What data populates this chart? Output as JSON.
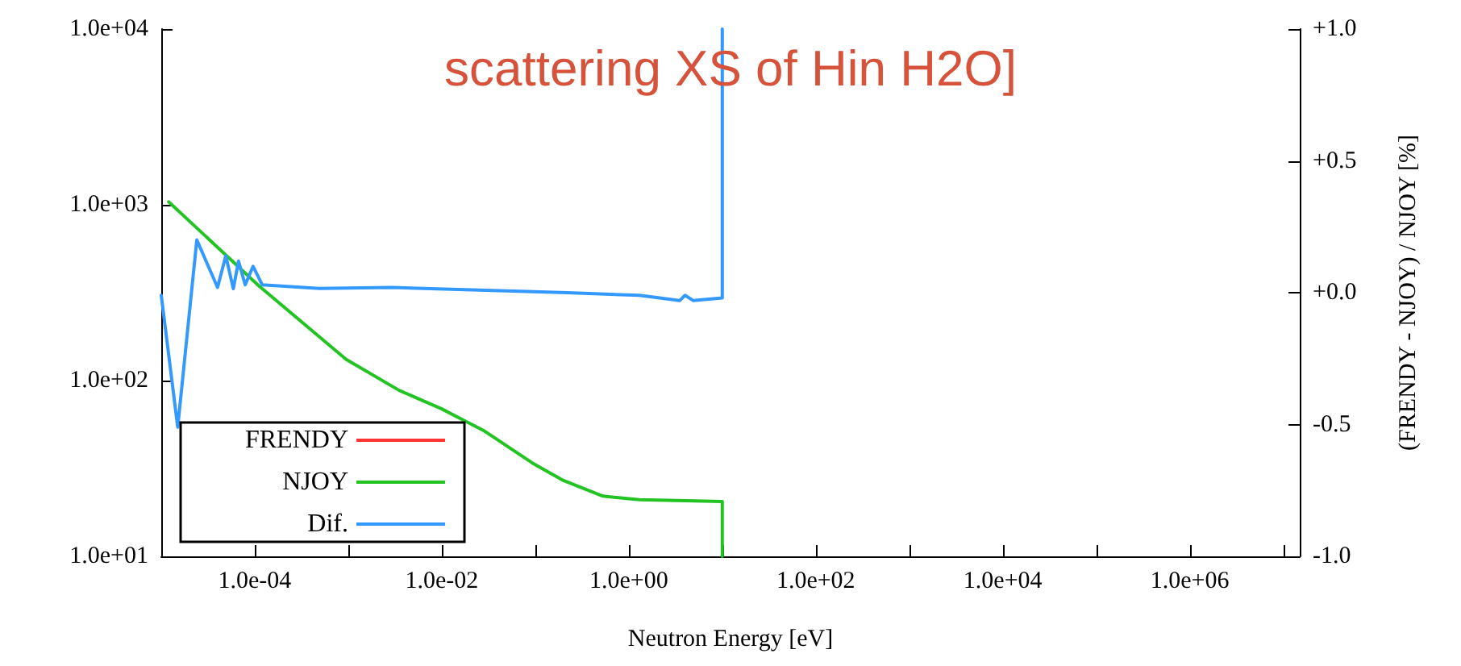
{
  "chart_data": {
    "type": "line",
    "title": "scattering XS of Hin H2O]",
    "xlabel": "Neutron Energy [eV]",
    "y2label": "(FRENDY - NJOY) / NJOY [%]",
    "log": "xy",
    "grid": false,
    "legend": "bottom left",
    "marker": "none",
    "line_style": "solid",
    "xlim": [
      1e-05,
      15000000
    ],
    "xticks": [
      {
        "value": 0.0001,
        "label": "1.0e-04"
      },
      {
        "value": 0.001,
        "label": null
      },
      {
        "value": 0.01,
        "label": "1.0e-02"
      },
      {
        "value": 0.1,
        "label": null
      },
      {
        "value": 1,
        "label": "1.0e+00"
      },
      {
        "value": 10,
        "label": null
      },
      {
        "value": 100,
        "label": "1.0e+02"
      },
      {
        "value": 1000,
        "label": null
      },
      {
        "value": 10000,
        "label": "1.0e+04"
      },
      {
        "value": 100000,
        "label": null
      },
      {
        "value": 1000000,
        "label": "1.0e+06"
      },
      {
        "value": 10000000,
        "label": null
      }
    ],
    "ylim": [
      10,
      10000
    ],
    "yticks": [
      {
        "value": 10,
        "label": "1.0e+01"
      },
      {
        "value": 100,
        "label": "1.0e+02"
      },
      {
        "value": 1000,
        "label": "1.0e+03"
      },
      {
        "value": 10000,
        "label": "1.0e+04"
      }
    ],
    "y2lim": [
      -1,
      1
    ],
    "y2ticks": [
      {
        "value": -1,
        "label": "-1.0"
      },
      {
        "value": -0.5,
        "label": "-0.5"
      },
      {
        "value": 0,
        "label": "+0.0"
      },
      {
        "value": 0.5,
        "label": "+0.5"
      },
      {
        "value": 1,
        "label": "+1.0"
      }
    ],
    "series": [
      {
        "name": "FRENDY",
        "color": "#ff3333"
      },
      {
        "name": "NJOY",
        "color": "#22c322",
        "x": [
          1.2e-05,
          0.00011,
          0.00095,
          0.0035,
          0.01,
          0.028,
          0.093,
          0.2,
          0.53,
          1.3,
          10,
          10
        ],
        "values": [
          1040,
          347,
          132,
          88,
          69,
          52,
          34,
          27,
          22,
          21,
          20.5,
          10
        ]
      },
      {
        "name": "Dif.",
        "color": "#3399ff",
        "axis": "y2",
        "x": [
          1e-05,
          1.5e-05,
          2.4e-05,
          4e-05,
          4.9e-05,
          5.9e-05,
          6.7e-05,
          7.9e-05,
          9.6e-05,
          0.00012,
          0.00049,
          0.0029,
          0.025,
          0.22,
          1.3,
          3.5,
          4.0,
          4.9,
          10,
          10
        ],
        "values": [
          -0.01,
          -0.51,
          0.2,
          0.02,
          0.14,
          0.015,
          0.12,
          0.03,
          0.1,
          0.03,
          0.016,
          0.02,
          0.01,
          0.0,
          -0.01,
          -0.03,
          -0.01,
          -0.03,
          -0.02,
          1.0
        ]
      }
    ]
  }
}
